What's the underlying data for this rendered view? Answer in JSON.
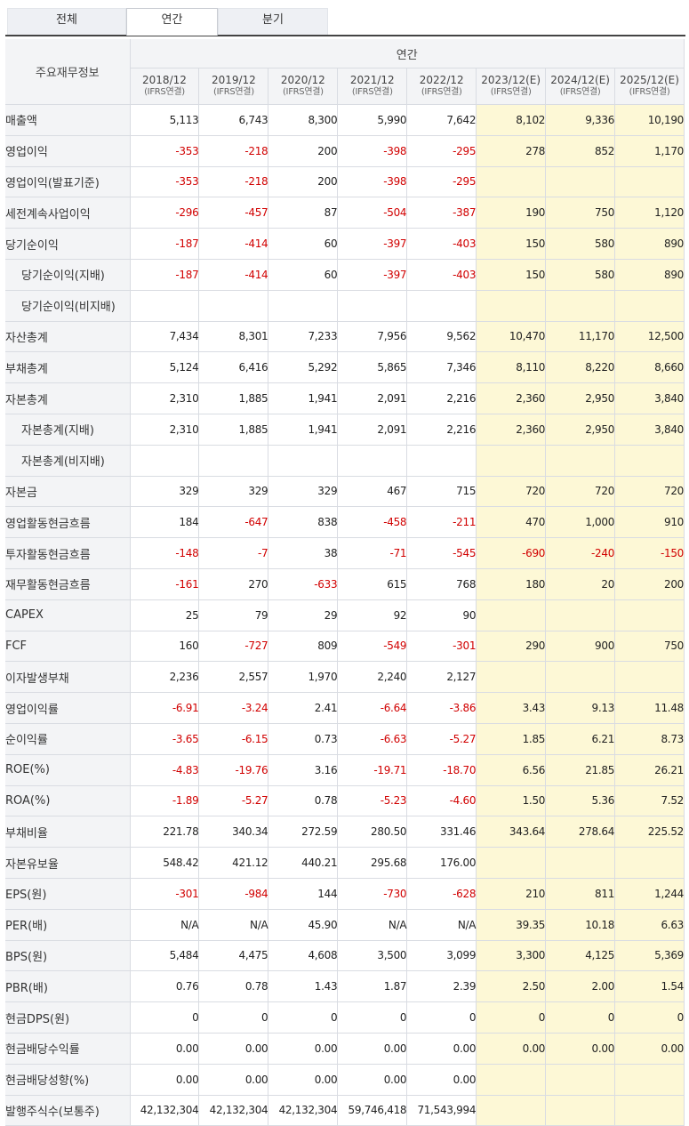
{
  "tabs": [
    "전체",
    "연간",
    "분기"
  ],
  "active_tab": "연간",
  "table": {
    "corner_label": "주요재무정보",
    "group_label": "연간",
    "periods": [
      {
        "label": "2018/12",
        "basis": "(IFRS연결)"
      },
      {
        "label": "2019/12",
        "basis": "(IFRS연결)"
      },
      {
        "label": "2020/12",
        "basis": "(IFRS연결)"
      },
      {
        "label": "2021/12",
        "basis": "(IFRS연결)"
      },
      {
        "label": "2022/12",
        "basis": "(IFRS연결)"
      },
      {
        "label": "2023/12(E)",
        "basis": "(IFRS연결)"
      },
      {
        "label": "2024/12(E)",
        "basis": "(IFRS연결)"
      },
      {
        "label": "2025/12(E)",
        "basis": "(IFRS연결)"
      }
    ],
    "estimate_start_index": 5,
    "colors": {
      "negative": "#d10000",
      "estimate_bg": "#fdf8d6",
      "header_bg": "#f3f4f6"
    },
    "rows": [
      {
        "label": "매출액",
        "values": [
          "5,113",
          "6,743",
          "8,300",
          "5,990",
          "7,642",
          "8,102",
          "9,336",
          "10,190"
        ]
      },
      {
        "label": "영업이익",
        "values": [
          "-353",
          "-218",
          "200",
          "-398",
          "-295",
          "278",
          "852",
          "1,170"
        ]
      },
      {
        "label": "영업이익(발표기준)",
        "values": [
          "-353",
          "-218",
          "200",
          "-398",
          "-295",
          "",
          "",
          ""
        ]
      },
      {
        "label": "세전계속사업이익",
        "values": [
          "-296",
          "-457",
          "87",
          "-504",
          "-387",
          "190",
          "750",
          "1,120"
        ]
      },
      {
        "label": "당기순이익",
        "values": [
          "-187",
          "-414",
          "60",
          "-397",
          "-403",
          "150",
          "580",
          "890"
        ]
      },
      {
        "label": "당기순이익(지배)",
        "indent": true,
        "values": [
          "-187",
          "-414",
          "60",
          "-397",
          "-403",
          "150",
          "580",
          "890"
        ]
      },
      {
        "label": "당기순이익(비지배)",
        "indent": true,
        "values": [
          "",
          "",
          "",
          "",
          "",
          "",
          "",
          ""
        ]
      },
      {
        "label": "자산총계",
        "values": [
          "7,434",
          "8,301",
          "7,233",
          "7,956",
          "9,562",
          "10,470",
          "11,170",
          "12,500"
        ]
      },
      {
        "label": "부채총계",
        "values": [
          "5,124",
          "6,416",
          "5,292",
          "5,865",
          "7,346",
          "8,110",
          "8,220",
          "8,660"
        ]
      },
      {
        "label": "자본총계",
        "values": [
          "2,310",
          "1,885",
          "1,941",
          "2,091",
          "2,216",
          "2,360",
          "2,950",
          "3,840"
        ]
      },
      {
        "label": "자본총계(지배)",
        "indent": true,
        "values": [
          "2,310",
          "1,885",
          "1,941",
          "2,091",
          "2,216",
          "2,360",
          "2,950",
          "3,840"
        ]
      },
      {
        "label": "자본총계(비지배)",
        "indent": true,
        "values": [
          "",
          "",
          "",
          "",
          "",
          "",
          "",
          ""
        ]
      },
      {
        "label": "자본금",
        "values": [
          "329",
          "329",
          "329",
          "467",
          "715",
          "720",
          "720",
          "720"
        ]
      },
      {
        "label": "영업활동현금흐름",
        "values": [
          "184",
          "-647",
          "838",
          "-458",
          "-211",
          "470",
          "1,000",
          "910"
        ]
      },
      {
        "label": "투자활동현금흐름",
        "values": [
          "-148",
          "-7",
          "38",
          "-71",
          "-545",
          "-690",
          "-240",
          "-150"
        ]
      },
      {
        "label": "재무활동현금흐름",
        "values": [
          "-161",
          "270",
          "-633",
          "615",
          "768",
          "180",
          "20",
          "200"
        ]
      },
      {
        "label": "CAPEX",
        "values": [
          "25",
          "79",
          "29",
          "92",
          "90",
          "",
          "",
          ""
        ]
      },
      {
        "label": "FCF",
        "values": [
          "160",
          "-727",
          "809",
          "-549",
          "-301",
          "290",
          "900",
          "750"
        ]
      },
      {
        "label": "이자발생부채",
        "values": [
          "2,236",
          "2,557",
          "1,970",
          "2,240",
          "2,127",
          "",
          "",
          ""
        ]
      },
      {
        "label": "영업이익률",
        "values": [
          "-6.91",
          "-3.24",
          "2.41",
          "-6.64",
          "-3.86",
          "3.43",
          "9.13",
          "11.48"
        ]
      },
      {
        "label": "순이익률",
        "values": [
          "-3.65",
          "-6.15",
          "0.73",
          "-6.63",
          "-5.27",
          "1.85",
          "6.21",
          "8.73"
        ]
      },
      {
        "label": "ROE(%)",
        "values": [
          "-4.83",
          "-19.76",
          "3.16",
          "-19.71",
          "-18.70",
          "6.56",
          "21.85",
          "26.21"
        ]
      },
      {
        "label": "ROA(%)",
        "values": [
          "-1.89",
          "-5.27",
          "0.78",
          "-5.23",
          "-4.60",
          "1.50",
          "5.36",
          "7.52"
        ]
      },
      {
        "label": "부채비율",
        "values": [
          "221.78",
          "340.34",
          "272.59",
          "280.50",
          "331.46",
          "343.64",
          "278.64",
          "225.52"
        ]
      },
      {
        "label": "자본유보율",
        "values": [
          "548.42",
          "421.12",
          "440.21",
          "295.68",
          "176.00",
          "",
          "",
          ""
        ]
      },
      {
        "label": "EPS(원)",
        "values": [
          "-301",
          "-984",
          "144",
          "-730",
          "-628",
          "210",
          "811",
          "1,244"
        ]
      },
      {
        "label": "PER(배)",
        "values": [
          "N/A",
          "N/A",
          "45.90",
          "N/A",
          "N/A",
          "39.35",
          "10.18",
          "6.63"
        ]
      },
      {
        "label": "BPS(원)",
        "values": [
          "5,484",
          "4,475",
          "4,608",
          "3,500",
          "3,099",
          "3,300",
          "4,125",
          "5,369"
        ]
      },
      {
        "label": "PBR(배)",
        "values": [
          "0.76",
          "0.78",
          "1.43",
          "1.87",
          "2.39",
          "2.50",
          "2.00",
          "1.54"
        ]
      },
      {
        "label": "현금DPS(원)",
        "values": [
          "0",
          "0",
          "0",
          "0",
          "0",
          "0",
          "0",
          "0"
        ]
      },
      {
        "label": "현금배당수익률",
        "values": [
          "0.00",
          "0.00",
          "0.00",
          "0.00",
          "0.00",
          "0.00",
          "0.00",
          "0.00"
        ]
      },
      {
        "label": "현금배당성향(%)",
        "values": [
          "0.00",
          "0.00",
          "0.00",
          "0.00",
          "0.00",
          "",
          "",
          ""
        ]
      },
      {
        "label": "발행주식수(보통주)",
        "values": [
          "42,132,304",
          "42,132,304",
          "42,132,304",
          "59,746,418",
          "71,543,994",
          "",
          "",
          ""
        ]
      }
    ]
  }
}
